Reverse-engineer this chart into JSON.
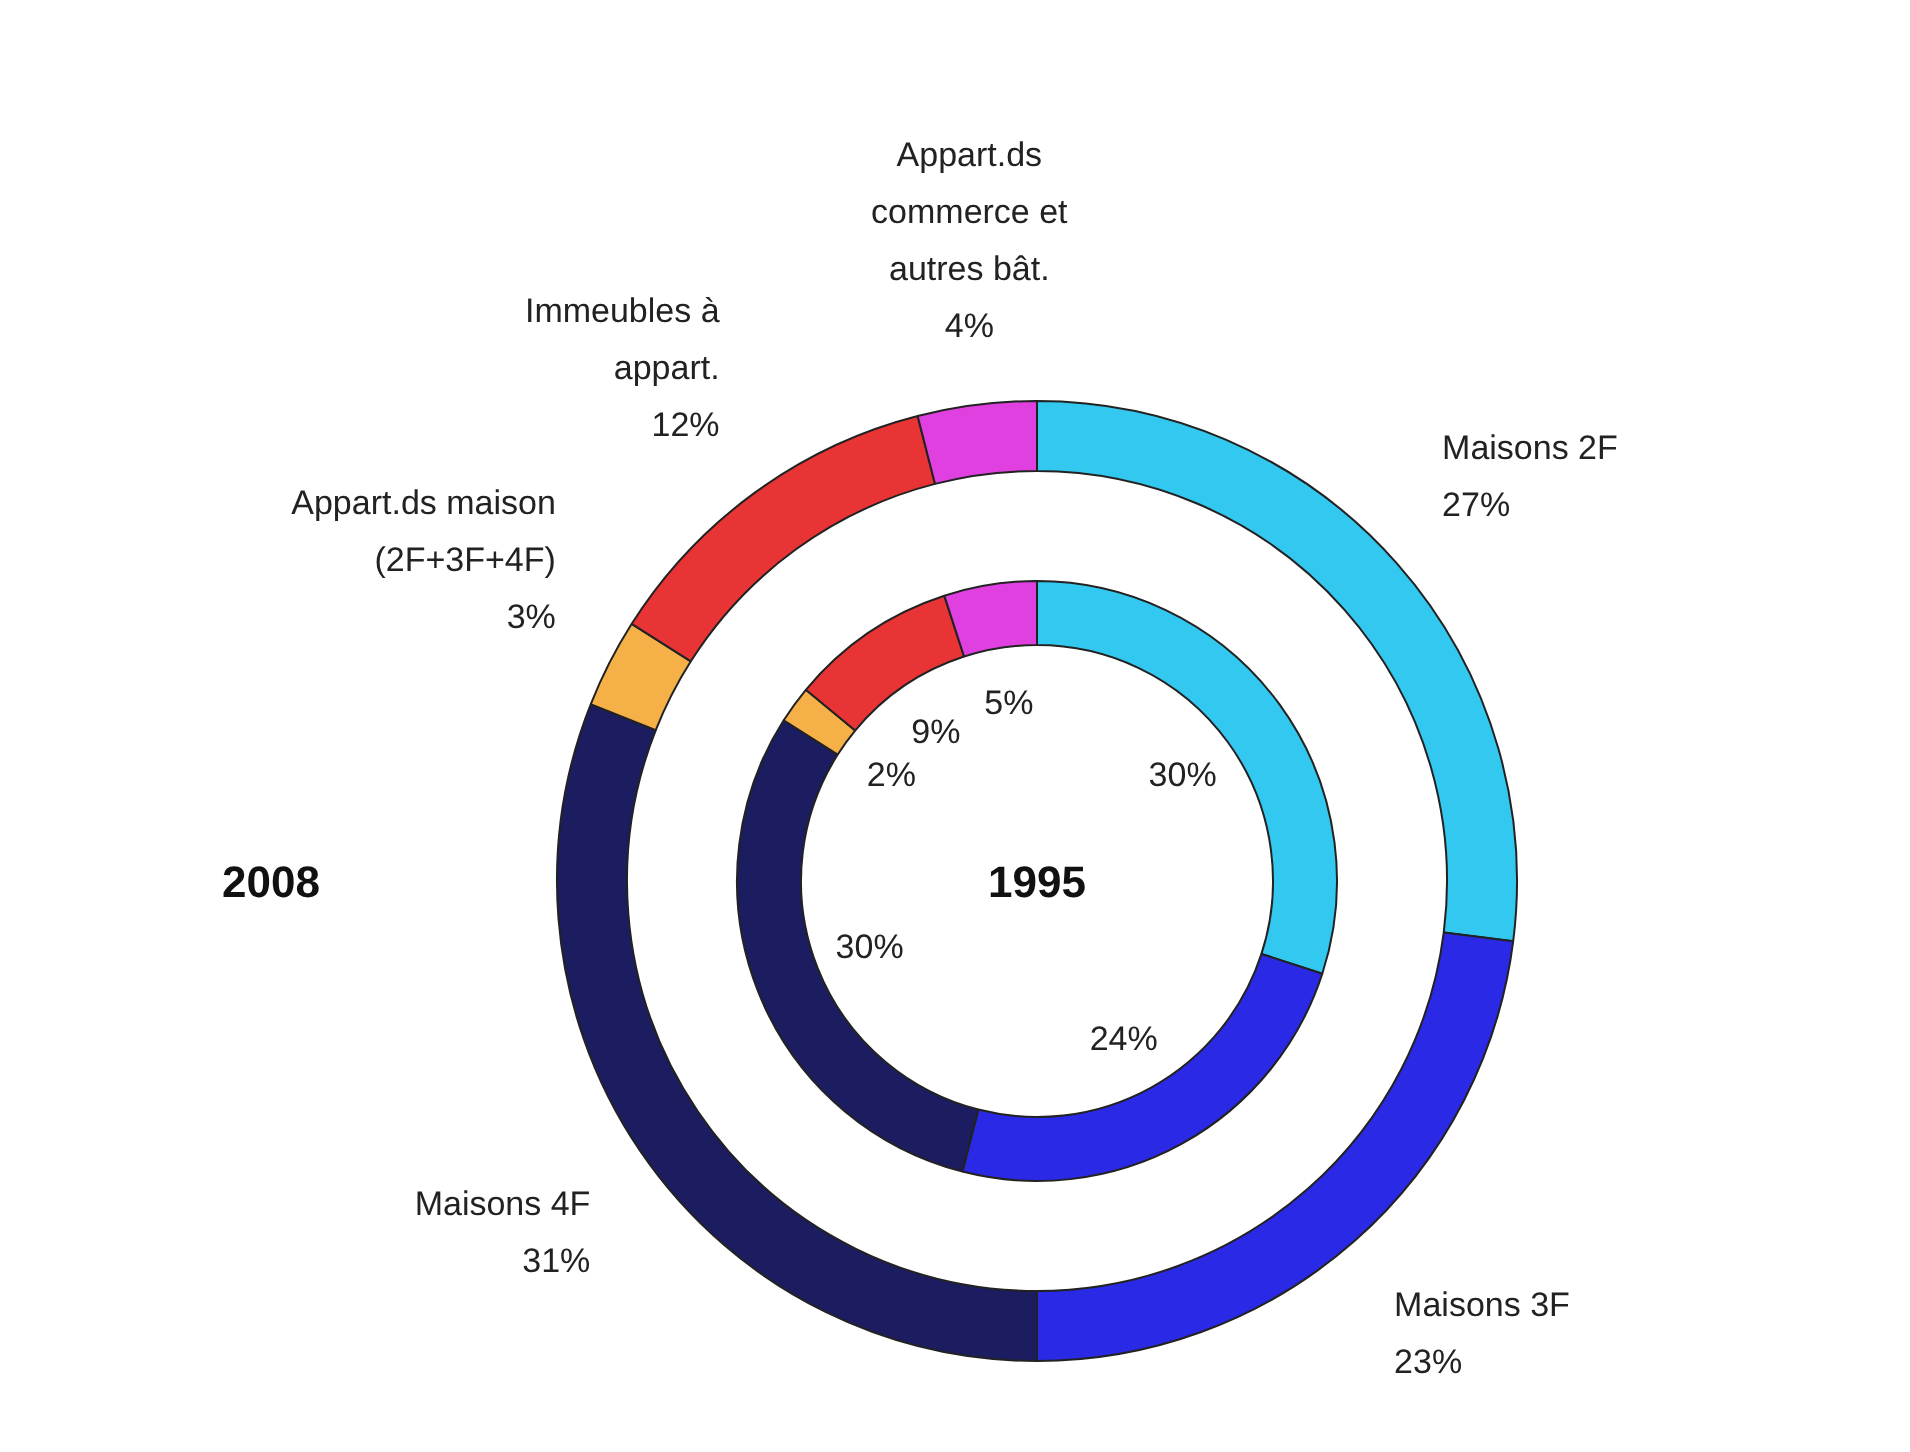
{
  "chart_data": {
    "type": "donut",
    "categories": [
      "Maisons 2F",
      "Maisons 3F",
      "Maisons 4F",
      "Appart.ds maison\n(2F+3F+4F)",
      "Immeubles à\nappart.",
      "Appart.ds\ncommerce et\nautres bât."
    ],
    "colors": [
      "#33c8f0",
      "#2a2ae6",
      "#1c1c60",
      "#f5b048",
      "#e83434",
      "#e040e0"
    ],
    "series": [
      {
        "name": "2008",
        "values": [
          27,
          23,
          31,
          3,
          12,
          4
        ],
        "value_labels": [
          "27%",
          "23%",
          "31%",
          "3%",
          "12%",
          "4%"
        ]
      },
      {
        "name": "1995",
        "values": [
          30,
          24,
          30,
          2,
          9,
          5
        ],
        "value_labels": [
          "30%",
          "24%",
          "30%",
          "2%",
          "9%",
          "5%"
        ]
      }
    ]
  }
}
